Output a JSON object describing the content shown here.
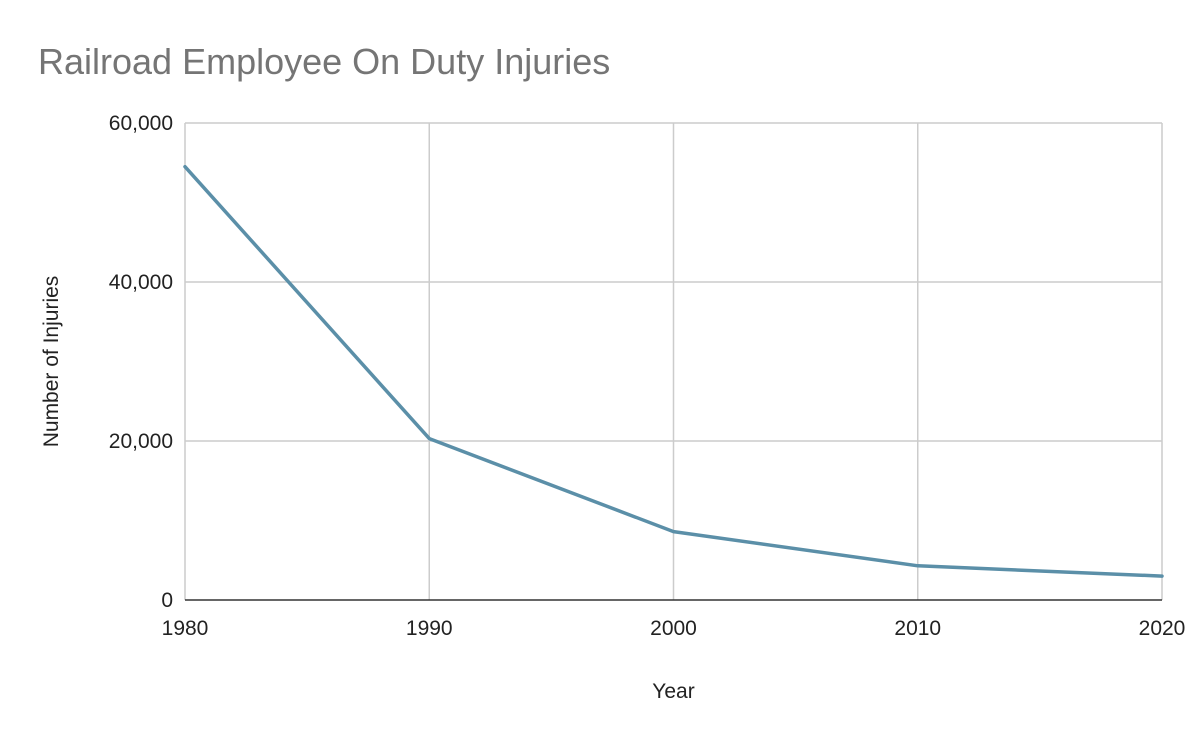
{
  "chart_data": {
    "type": "line",
    "title": "Railroad Employee On Duty Injuries",
    "xlabel": "Year",
    "ylabel": "Number of Injuries",
    "x": [
      1980,
      1990,
      2000,
      2010,
      2020
    ],
    "x_tick_labels": [
      "1980",
      "1990",
      "2000",
      "2010",
      "2020"
    ],
    "xlim": [
      1980,
      2020
    ],
    "ylim": [
      0,
      60000
    ],
    "y_ticks": [
      0,
      20000,
      40000,
      60000
    ],
    "y_tick_labels": [
      "0",
      "20,000",
      "40,000",
      "60,000"
    ],
    "grid": true,
    "legend": "none",
    "series": [
      {
        "values": [
          54500,
          20300,
          8600,
          4300,
          3000
        ],
        "color": "#5b8fa8"
      }
    ]
  }
}
